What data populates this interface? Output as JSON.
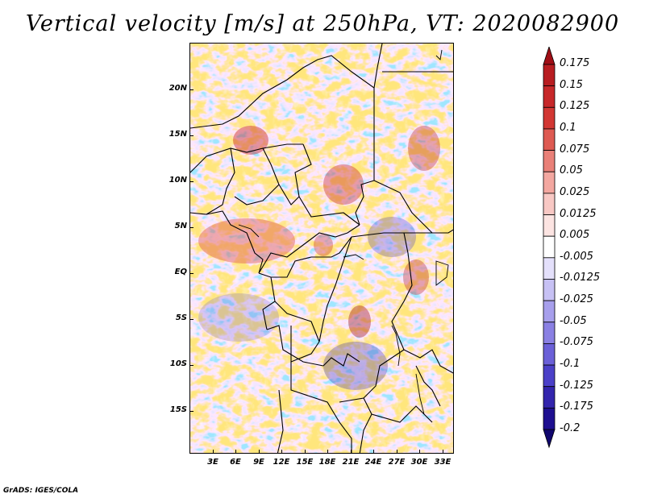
{
  "title": "Vertical velocity [m/s] at 250hPa, VT: 2020082900",
  "credit": "GrADS: IGES/COLA",
  "latitude_labels": [
    "20N",
    "15N",
    "10N",
    "5N",
    "EQ",
    "5S",
    "10S",
    "15S"
  ],
  "longitude_labels": [
    "3E",
    "6E",
    "9E",
    "12E",
    "15E",
    "18E",
    "21E",
    "24E",
    "27E",
    "30E",
    "33E"
  ],
  "colorbar": {
    "labels": [
      "0.175",
      "0.15",
      "0.125",
      "0.1",
      "0.075",
      "0.05",
      "0.025",
      "0.0125",
      "0.005",
      "-0.005",
      "-0.0125",
      "-0.025",
      "-0.05",
      "-0.075",
      "-0.1",
      "-0.125",
      "-0.175",
      "-0.2"
    ],
    "colors": [
      "#a00e16",
      "#b81d21",
      "#c7282a",
      "#d23733",
      "#de5a52",
      "#e98078",
      "#f3a7a0",
      "#f8c8c4",
      "#fce4e2",
      "#ffffff",
      "#e4e0fb",
      "#c7c1f4",
      "#a79fec",
      "#8a80e3",
      "#6b60d8",
      "#4b40c8",
      "#3325ad",
      "#1e0f90",
      "#10066e"
    ]
  }
}
